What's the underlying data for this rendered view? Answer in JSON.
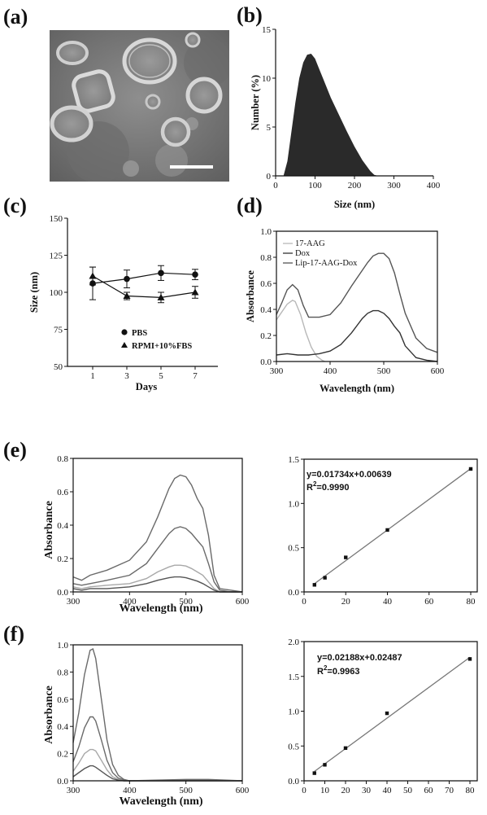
{
  "panels": {
    "a": "(a)",
    "b": "(b)",
    "c": "(c)",
    "d": "(d)",
    "e": "(e)",
    "f": "(f)"
  },
  "chart_data": [
    {
      "id": "b",
      "type": "area",
      "xlabel": "Size (nm)",
      "ylabel": "Number (%)",
      "xlim": [
        0,
        400
      ],
      "ylim": [
        0,
        15
      ],
      "xticks": [
        0,
        100,
        200,
        300,
        400
      ],
      "yticks": [
        0,
        5,
        10,
        15
      ],
      "x": [
        20,
        30,
        40,
        50,
        60,
        70,
        80,
        90,
        100,
        110,
        120,
        140,
        160,
        180,
        200,
        220,
        240,
        250,
        260
      ],
      "y": [
        0,
        1.5,
        4.5,
        7.5,
        10,
        11.6,
        12.4,
        12.5,
        12,
        11,
        10,
        8,
        6.3,
        4.6,
        3,
        1.6,
        0.5,
        0.1,
        0
      ],
      "color": "#2a2a2a"
    },
    {
      "id": "c",
      "type": "line",
      "xlabel": "Days",
      "ylabel": "Size (nm)",
      "ylim": [
        50,
        150
      ],
      "categories": [
        "1",
        "3",
        "5",
        "7"
      ],
      "yticks": [
        50,
        75,
        100,
        125,
        150
      ],
      "series": [
        {
          "name": "PBS",
          "marker": "circle",
          "values": [
            106,
            109,
            113,
            112
          ],
          "err": [
            11,
            6,
            5,
            3.5
          ]
        },
        {
          "name": "RPMI+10%FBS",
          "marker": "triangle",
          "values": [
            111,
            97.5,
            96.5,
            100
          ],
          "err": [
            6,
            2.5,
            3.5,
            4
          ]
        }
      ],
      "legend": "bottom-left"
    },
    {
      "id": "d",
      "type": "line",
      "xlabel": "Wavelength (nm)",
      "ylabel": "Absorbance",
      "xlim": [
        300,
        600
      ],
      "ylim": [
        0,
        1.0
      ],
      "xticks": [
        300,
        400,
        500,
        600
      ],
      "yticks": [
        "0.0",
        "0.2",
        "0.4",
        "0.6",
        "0.8",
        "1.0"
      ],
      "legend": "top-left",
      "series": [
        {
          "name": "17-AAG",
          "color": "#b8b8b8",
          "x": [
            300,
            310,
            320,
            330,
            335,
            345,
            355,
            365,
            375,
            385,
            390
          ],
          "y": [
            0.32,
            0.38,
            0.44,
            0.47,
            0.46,
            0.36,
            0.22,
            0.11,
            0.04,
            0.01,
            0
          ]
        },
        {
          "name": "Dox",
          "color": "#333333",
          "x": [
            300,
            320,
            340,
            360,
            380,
            400,
            420,
            440,
            460,
            470,
            480,
            490,
            500,
            510,
            520,
            530,
            540,
            560,
            580,
            600
          ],
          "y": [
            0.05,
            0.06,
            0.05,
            0.05,
            0.06,
            0.08,
            0.13,
            0.22,
            0.33,
            0.37,
            0.39,
            0.39,
            0.37,
            0.33,
            0.27,
            0.22,
            0.12,
            0.03,
            0.01,
            0
          ]
        },
        {
          "name": "Lip-17-AAG-Dox",
          "color": "#555555",
          "x": [
            300,
            310,
            320,
            330,
            340,
            350,
            360,
            380,
            400,
            420,
            440,
            460,
            470,
            480,
            490,
            500,
            510,
            520,
            530,
            540,
            560,
            580,
            600
          ],
          "y": [
            0.36,
            0.45,
            0.55,
            0.59,
            0.55,
            0.43,
            0.34,
            0.34,
            0.36,
            0.45,
            0.58,
            0.7,
            0.76,
            0.81,
            0.83,
            0.83,
            0.79,
            0.68,
            0.52,
            0.37,
            0.18,
            0.1,
            0.07
          ]
        }
      ]
    },
    {
      "id": "e-spectra",
      "type": "line",
      "xlabel": "Wavelength (nm)",
      "ylabel": "Absorbance",
      "xlim": [
        300,
        600
      ],
      "ylim": [
        0,
        0.8
      ],
      "xticks": [
        300,
        400,
        500,
        600
      ],
      "yticks": [
        "0.0",
        "0.2",
        "0.4",
        "0.6",
        "0.8"
      ],
      "series": [
        {
          "color": "#6a6a6a",
          "x": [
            300,
            315,
            330,
            360,
            400,
            430,
            450,
            470,
            480,
            490,
            500,
            510,
            520,
            530,
            540,
            550,
            560,
            580,
            600
          ],
          "y": [
            0.09,
            0.07,
            0.1,
            0.13,
            0.19,
            0.3,
            0.45,
            0.62,
            0.68,
            0.7,
            0.69,
            0.64,
            0.56,
            0.5,
            0.34,
            0.1,
            0.02,
            0.01,
            0
          ]
        },
        {
          "color": "#6a6a6a",
          "x": [
            300,
            315,
            330,
            360,
            400,
            430,
            450,
            470,
            480,
            490,
            500,
            510,
            520,
            530,
            540,
            550,
            560,
            580,
            600
          ],
          "y": [
            0.05,
            0.04,
            0.05,
            0.07,
            0.1,
            0.17,
            0.26,
            0.35,
            0.38,
            0.39,
            0.38,
            0.35,
            0.31,
            0.27,
            0.17,
            0.06,
            0.01,
            0,
            0
          ]
        },
        {
          "color": "#a8a8a8",
          "x": [
            300,
            315,
            330,
            360,
            400,
            430,
            450,
            470,
            480,
            490,
            500,
            510,
            520,
            530,
            540,
            550,
            560,
            580,
            600
          ],
          "y": [
            0.03,
            0.02,
            0.03,
            0.04,
            0.05,
            0.08,
            0.12,
            0.15,
            0.16,
            0.16,
            0.155,
            0.14,
            0.12,
            0.1,
            0.06,
            0.02,
            0,
            0,
            0
          ]
        },
        {
          "color": "#555555",
          "x": [
            300,
            315,
            330,
            360,
            400,
            430,
            450,
            470,
            480,
            490,
            500,
            510,
            520,
            530,
            540,
            550,
            560,
            580,
            600
          ],
          "y": [
            0.02,
            0.01,
            0.02,
            0.02,
            0.03,
            0.05,
            0.07,
            0.085,
            0.09,
            0.09,
            0.085,
            0.075,
            0.065,
            0.05,
            0.03,
            0.01,
            0,
            0,
            0
          ]
        }
      ]
    },
    {
      "id": "e-fit",
      "type": "scatter",
      "xlim": [
        0,
        80
      ],
      "ylim": [
        0,
        1.5
      ],
      "xticks": [
        0,
        20,
        40,
        60,
        80
      ],
      "yticks": [
        "0.0",
        "0.5",
        "1.0",
        "1.5"
      ],
      "x": [
        5,
        10,
        20,
        40,
        80
      ],
      "y": [
        0.08,
        0.16,
        0.39,
        0.7,
        1.39
      ],
      "fit": {
        "slope": 0.01734,
        "intercept": 0.00639
      },
      "annotations": [
        "y=0.01734x+0.00639",
        "R",
        "2",
        "=0.9990"
      ]
    },
    {
      "id": "f-spectra",
      "type": "line",
      "xlabel": "Wavelength (nm)",
      "ylabel": "Absorbance",
      "xlim": [
        300,
        600
      ],
      "ylim": [
        0,
        1.0
      ],
      "xticks": [
        300,
        400,
        500,
        600
      ],
      "yticks": [
        "0.0",
        "0.2",
        "0.4",
        "0.6",
        "0.8",
        "1.0"
      ],
      "series": [
        {
          "color": "#6a6a6a",
          "x": [
            300,
            310,
            320,
            330,
            335,
            340,
            350,
            360,
            370,
            380,
            390,
            400,
            500,
            540,
            600
          ],
          "y": [
            0.28,
            0.5,
            0.78,
            0.96,
            0.97,
            0.9,
            0.6,
            0.3,
            0.12,
            0.04,
            0.01,
            0,
            0.01,
            0.01,
            0
          ]
        },
        {
          "color": "#6a6a6a",
          "x": [
            300,
            310,
            320,
            330,
            335,
            340,
            350,
            360,
            370,
            380,
            390,
            400,
            500,
            540,
            600
          ],
          "y": [
            0.14,
            0.25,
            0.39,
            0.47,
            0.47,
            0.44,
            0.3,
            0.15,
            0.06,
            0.02,
            0.005,
            0,
            0.005,
            0.005,
            0
          ]
        },
        {
          "color": "#a8a8a8",
          "x": [
            300,
            310,
            320,
            330,
            335,
            340,
            350,
            360,
            370,
            380,
            390,
            400,
            500,
            540,
            600
          ],
          "y": [
            0.07,
            0.13,
            0.2,
            0.23,
            0.23,
            0.22,
            0.15,
            0.08,
            0.03,
            0.01,
            0,
            0,
            0,
            0,
            0
          ]
        },
        {
          "color": "#555555",
          "x": [
            300,
            310,
            320,
            330,
            335,
            340,
            350,
            360,
            370,
            380,
            390,
            400,
            500,
            540,
            600
          ],
          "y": [
            0.03,
            0.06,
            0.09,
            0.11,
            0.11,
            0.1,
            0.07,
            0.04,
            0.015,
            0.005,
            0,
            0,
            0,
            0,
            0
          ]
        }
      ]
    },
    {
      "id": "f-fit",
      "type": "scatter",
      "xlim": [
        0,
        80
      ],
      "ylim": [
        0,
        2.0
      ],
      "xticks": [
        0,
        10,
        20,
        30,
        40,
        50,
        60,
        70,
        80
      ],
      "yticks": [
        "0.0",
        "0.5",
        "1.0",
        "1.5",
        "2.0"
      ],
      "x": [
        5,
        10,
        20,
        40,
        80
      ],
      "y": [
        0.11,
        0.23,
        0.47,
        0.97,
        1.75
      ],
      "fit": {
        "slope": 0.02188,
        "intercept": 0.02487
      },
      "annotations": [
        "y=0.02188x+0.02487",
        "R",
        "2",
        "=0.9963"
      ]
    }
  ]
}
